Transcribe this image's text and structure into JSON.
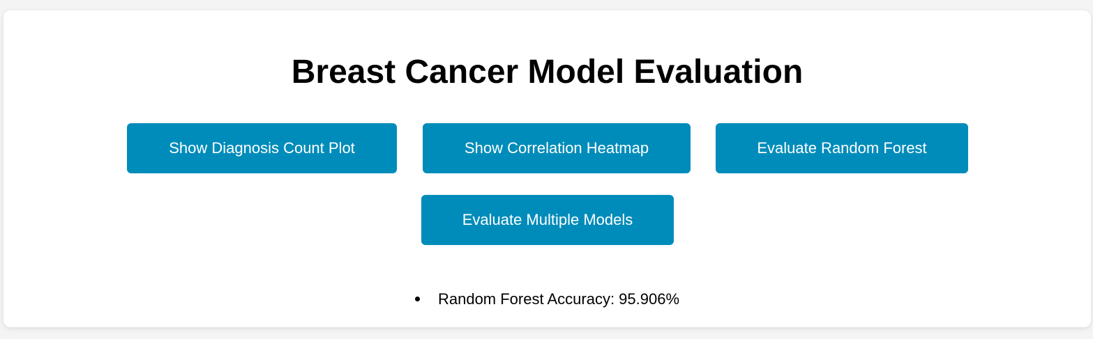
{
  "page": {
    "title": "Breast Cancer Model Evaluation"
  },
  "buttons": {
    "diagnosis_count_plot": "Show Diagnosis Count Plot",
    "correlation_heatmap": "Show Correlation Heatmap",
    "evaluate_random_forest": "Evaluate Random Forest",
    "evaluate_multiple_models": "Evaluate Multiple Models"
  },
  "results": [
    "Random Forest Accuracy: 95.906%"
  ],
  "colors": {
    "button_bg": "#008cba",
    "button_text": "#ffffff",
    "page_bg": "#f4f4f4",
    "card_bg": "#ffffff"
  }
}
